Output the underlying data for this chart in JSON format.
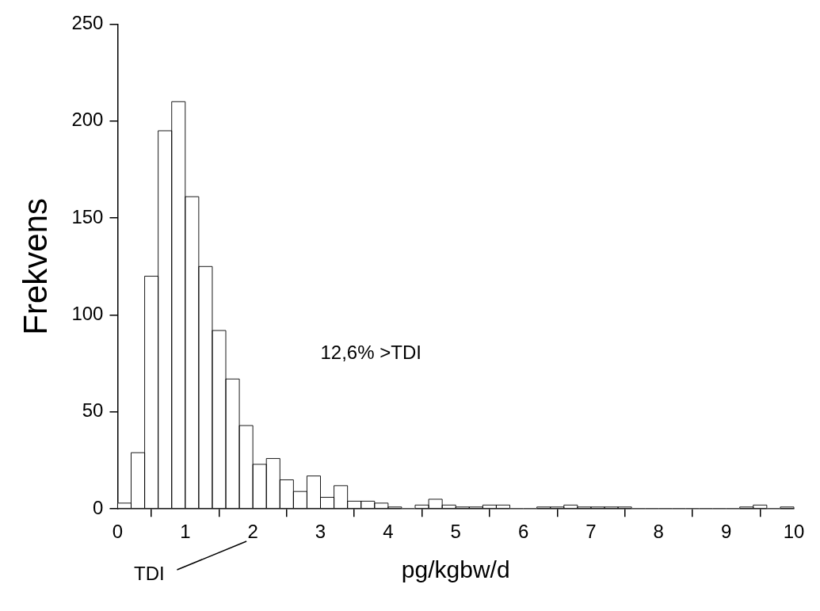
{
  "chart_data": {
    "type": "histogram",
    "xlabel": "pg/kgbw/d",
    "ylabel": "Frekvens",
    "bins": [
      0,
      0.2,
      0.4,
      0.6,
      0.8,
      1,
      1.2,
      1.4,
      1.6,
      1.8,
      2,
      2.2,
      2.4,
      2.6,
      2.8,
      3,
      3.2,
      3.4,
      3.6,
      3.8,
      4,
      4.2,
      4.4,
      4.6,
      4.8,
      5,
      5.2,
      5.4,
      5.6,
      5.8,
      6,
      6.2,
      6.4,
      6.6,
      6.8,
      7,
      7.2,
      7.4,
      7.6,
      7.8,
      8,
      8.2,
      8.4,
      8.6,
      8.8,
      9,
      9.2,
      9.4,
      9.6,
      9.8,
      10
    ],
    "values": [
      3,
      29,
      120,
      195,
      210,
      161,
      125,
      92,
      67,
      43,
      23,
      26,
      15,
      9,
      17,
      6,
      12,
      4,
      4,
      3,
      1,
      0,
      2,
      5,
      2,
      1,
      1,
      2,
      2,
      0,
      0,
      1,
      1,
      2,
      1,
      1,
      1,
      1,
      0,
      0,
      0,
      0,
      0,
      0,
      0,
      0,
      1,
      2,
      0,
      1
    ],
    "color": "#ffffff",
    "xlim": [
      0,
      10
    ],
    "xticks": [
      0,
      1,
      2,
      3,
      4,
      5,
      6,
      7,
      8,
      9,
      10
    ],
    "ylim": [
      0,
      250
    ],
    "yticks": [
      0,
      50,
      100,
      150,
      200,
      250
    ],
    "annotations": [
      "12,6% >TDI",
      "TDI"
    ]
  }
}
